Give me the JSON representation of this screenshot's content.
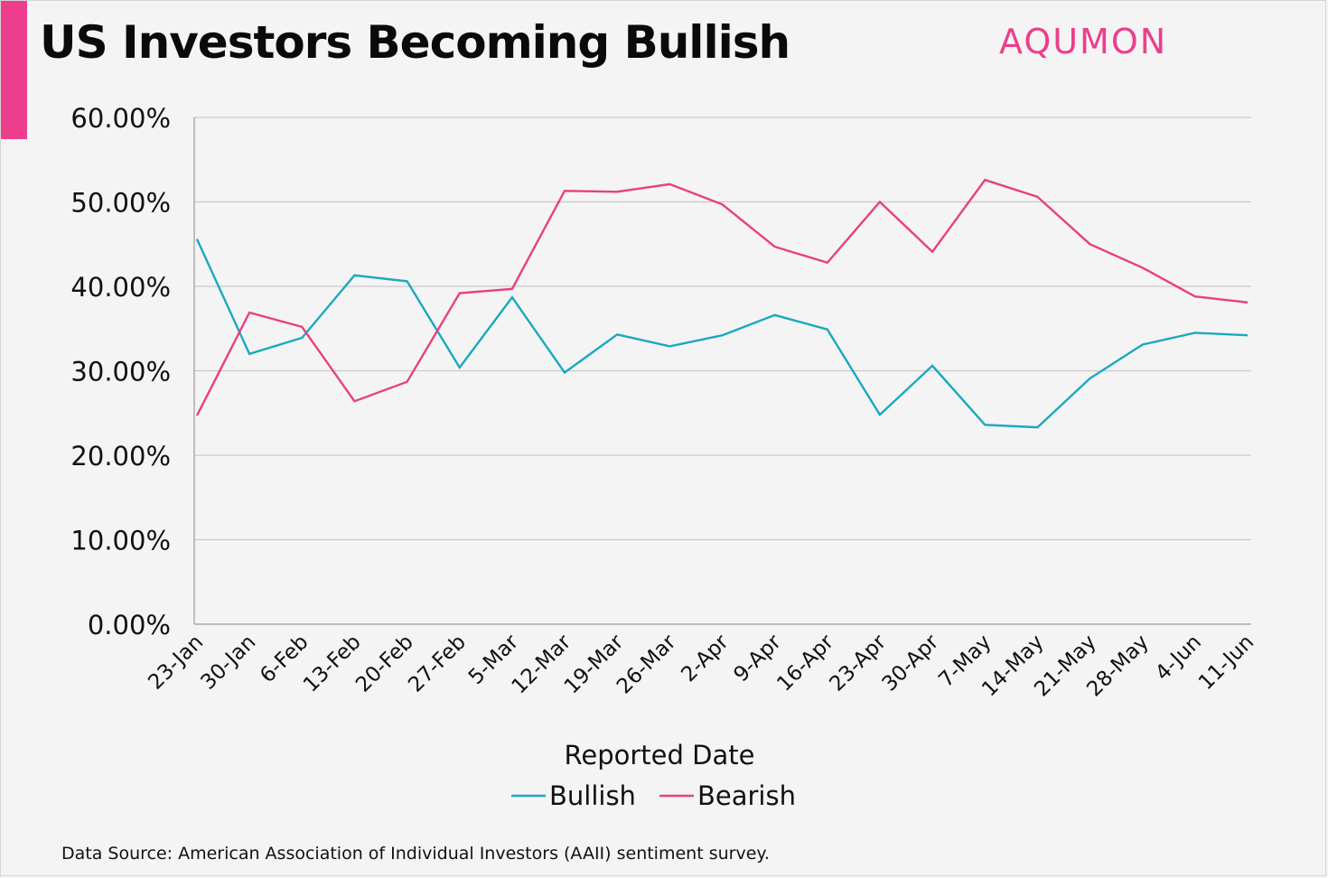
{
  "header": {
    "title": "US Investors Becoming Bullish",
    "logo": "AQUMON"
  },
  "footer": {
    "source": "Data Source: American Association of Individual Investors (AAII) sentiment survey."
  },
  "colors": {
    "accent": "#ec3e8c",
    "bullish": "#19a9c0",
    "bearish": "#e8407f",
    "grid": "#c9c9c9",
    "axis": "#9a9a9a"
  },
  "chart_data": {
    "type": "line",
    "title": "US Investors Becoming Bullish",
    "xlabel": "Reported Date",
    "ylabel": "",
    "ylim": [
      0,
      60
    ],
    "yticks": [
      "0.00%",
      "10.00%",
      "20.00%",
      "30.00%",
      "40.00%",
      "50.00%",
      "60.00%"
    ],
    "grid": true,
    "legend_position": "bottom-center",
    "categories": [
      "23-Jan",
      "30-Jan",
      "6-Feb",
      "13-Feb",
      "20-Feb",
      "27-Feb",
      "5-Mar",
      "12-Mar",
      "19-Mar",
      "26-Mar",
      "2-Apr",
      "9-Apr",
      "16-Apr",
      "23-Apr",
      "30-Apr",
      "7-May",
      "14-May",
      "21-May",
      "28-May",
      "4-Jun",
      "11-Jun"
    ],
    "series": [
      {
        "name": "Bullish",
        "color": "#19a9c0",
        "values": [
          45.6,
          32.0,
          33.9,
          41.3,
          40.6,
          30.4,
          38.7,
          29.8,
          34.3,
          32.9,
          34.2,
          36.6,
          34.9,
          24.8,
          30.6,
          23.6,
          23.3,
          29.1,
          33.1,
          34.5,
          34.2
        ]
      },
      {
        "name": "Bearish",
        "color": "#e8407f",
        "values": [
          24.7,
          36.9,
          35.2,
          26.4,
          28.7,
          39.2,
          39.7,
          51.3,
          51.2,
          52.1,
          49.7,
          44.7,
          42.8,
          50.0,
          44.1,
          52.6,
          50.6,
          45.0,
          42.2,
          38.8,
          38.1
        ]
      }
    ]
  }
}
